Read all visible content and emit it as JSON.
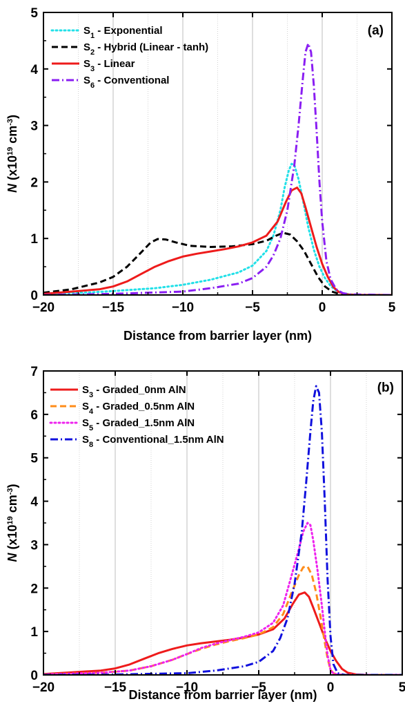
{
  "chart_data": [
    {
      "type": "line",
      "panel_label": "(a)",
      "xlabel": "Distance from barrier layer (nm)",
      "ylabel": {
        "main": "N",
        "unit_prefix": " (x10",
        "exp": "19",
        "unit_mid": " cm",
        "unit_exp": "-3",
        "unit_suffix": ")"
      },
      "xlim": [
        -20,
        5
      ],
      "ylim": [
        0,
        5
      ],
      "xticks": [
        -20,
        -15,
        -10,
        -5,
        0,
        5
      ],
      "yticks": [
        0,
        1,
        2,
        3,
        4,
        5
      ],
      "grid": "vertical",
      "legend_position": "top-left",
      "series": [
        {
          "name": "S",
          "sub": "1",
          "rest": " - Exponential",
          "color": "#22e0e8",
          "dash": "dot",
          "x": [
            -20,
            -17,
            -15,
            -12,
            -10,
            -8,
            -6,
            -5,
            -4,
            -3.5,
            -3,
            -2.7,
            -2.4,
            -2.2,
            -2,
            -1.7,
            -1.4,
            -1,
            -0.6,
            -0.2,
            0.2,
            0.6,
            1,
            1.5,
            2,
            3,
            5
          ],
          "y": [
            0.02,
            0.04,
            0.07,
            0.12,
            0.18,
            0.27,
            0.4,
            0.52,
            0.78,
            1.05,
            1.5,
            1.9,
            2.2,
            2.32,
            2.3,
            2.05,
            1.7,
            1.2,
            0.8,
            0.5,
            0.3,
            0.16,
            0.08,
            0.03,
            0.01,
            0,
            0
          ]
        },
        {
          "name": "S",
          "sub": "2",
          "rest": " - Hybrid (Linear - tanh)",
          "color": "#000000",
          "dash": "dash",
          "x": [
            -20,
            -18,
            -16,
            -15,
            -14,
            -13,
            -12.3,
            -11.8,
            -11.2,
            -10.5,
            -9.5,
            -8,
            -6.5,
            -5,
            -4,
            -3.3,
            -2.8,
            -2.3,
            -1.8,
            -1.3,
            -0.8,
            -0.3,
            0.2,
            0.7,
            1.2,
            2,
            5
          ],
          "y": [
            0.04,
            0.1,
            0.22,
            0.32,
            0.5,
            0.75,
            0.93,
            0.99,
            0.98,
            0.93,
            0.87,
            0.85,
            0.86,
            0.9,
            0.96,
            1.05,
            1.1,
            1.07,
            0.95,
            0.78,
            0.55,
            0.32,
            0.15,
            0.06,
            0.02,
            0,
            0
          ]
        },
        {
          "name": "S",
          "sub": "3",
          "rest": " - Linear",
          "color": "#ee1b1b",
          "dash": "solid",
          "x": [
            -20,
            -18,
            -16,
            -15,
            -14,
            -13,
            -12,
            -11,
            -10,
            -9,
            -8,
            -7,
            -6,
            -5,
            -4,
            -3.2,
            -2.6,
            -2.2,
            -1.8,
            -1.5,
            -1.2,
            -0.8,
            -0.4,
            0,
            0.4,
            0.8,
            1.2,
            1.8,
            2.5,
            5
          ],
          "y": [
            0.02,
            0.06,
            0.1,
            0.15,
            0.24,
            0.37,
            0.5,
            0.6,
            0.68,
            0.73,
            0.77,
            0.81,
            0.86,
            0.93,
            1.05,
            1.3,
            1.65,
            1.85,
            1.9,
            1.8,
            1.55,
            1.2,
            0.85,
            0.55,
            0.32,
            0.14,
            0.05,
            0.01,
            0,
            0
          ]
        },
        {
          "name": "S",
          "sub": "6",
          "rest": " - Conventional",
          "color": "#8a1ef2",
          "dash": "dashdot",
          "x": [
            -20,
            -15,
            -10,
            -8,
            -6,
            -5,
            -4,
            -3.5,
            -3,
            -2.5,
            -2,
            -1.7,
            -1.4,
            -1.2,
            -1,
            -0.8,
            -0.6,
            -0.4,
            -0.2,
            0,
            0.3,
            0.6,
            1,
            1.5,
            2,
            5
          ],
          "y": [
            0,
            0.02,
            0.06,
            0.12,
            0.2,
            0.3,
            0.5,
            0.7,
            1.0,
            1.5,
            2.3,
            3.0,
            3.8,
            4.3,
            4.45,
            4.3,
            3.7,
            2.9,
            2.0,
            1.3,
            0.6,
            0.28,
            0.1,
            0.03,
            0.01,
            0
          ]
        }
      ]
    },
    {
      "type": "line",
      "panel_label": "(b)",
      "xlabel": "Distance from barrier layer (nm)",
      "ylabel": {
        "main": "N",
        "unit_prefix": " (x10",
        "exp": "19",
        "unit_mid": " cm",
        "unit_exp": "-3",
        "unit_suffix": ")"
      },
      "xlim": [
        -20,
        5
      ],
      "ylim": [
        0,
        7
      ],
      "xticks": [
        -20,
        -15,
        -10,
        -5,
        0,
        5
      ],
      "yticks": [
        0,
        1,
        2,
        3,
        4,
        5,
        6,
        7
      ],
      "grid": "vertical",
      "legend_position": "top-left",
      "series": [
        {
          "name": "S",
          "sub": "3",
          "rest": " - Graded_0nm AlN",
          "color": "#ee1b1b",
          "dash": "solid",
          "x": [
            -20,
            -18,
            -16,
            -15,
            -14,
            -13,
            -12,
            -11,
            -10,
            -9,
            -8,
            -7,
            -6,
            -5,
            -4,
            -3.2,
            -2.6,
            -2.2,
            -1.8,
            -1.5,
            -1.2,
            -0.8,
            -0.4,
            0,
            0.4,
            0.8,
            1.2,
            1.8,
            2.5,
            5
          ],
          "y": [
            0.02,
            0.06,
            0.1,
            0.15,
            0.24,
            0.37,
            0.5,
            0.6,
            0.68,
            0.73,
            0.77,
            0.81,
            0.86,
            0.93,
            1.05,
            1.3,
            1.65,
            1.85,
            1.9,
            1.8,
            1.55,
            1.2,
            0.85,
            0.55,
            0.32,
            0.14,
            0.05,
            0.01,
            0,
            0
          ]
        },
        {
          "name": "S",
          "sub": "4",
          "rest": " - Graded_0.5nm AlN",
          "color": "#ff8c1a",
          "dash": "dash",
          "x": [
            -20,
            -18,
            -16,
            -14,
            -12.5,
            -11,
            -10,
            -9,
            -8,
            -7,
            -6,
            -5,
            -4,
            -3.3,
            -2.7,
            -2.2,
            -1.9,
            -1.6,
            -1.3,
            -1,
            -0.7,
            -0.4,
            -0.2,
            0,
            0.2,
            0.5,
            1,
            5
          ],
          "y": [
            0.01,
            0.03,
            0.05,
            0.1,
            0.2,
            0.35,
            0.48,
            0.6,
            0.7,
            0.78,
            0.85,
            0.93,
            1.1,
            1.4,
            1.9,
            2.3,
            2.48,
            2.5,
            2.3,
            1.9,
            1.35,
            0.75,
            0.38,
            0.12,
            0.04,
            0.01,
            0,
            0
          ]
        },
        {
          "name": "S",
          "sub": "5",
          "rest": " - Graded_1.5nm AlN",
          "color": "#ee22ee",
          "dash": "dot",
          "x": [
            -20,
            -18,
            -16,
            -14,
            -12.5,
            -11,
            -10,
            -9,
            -8,
            -7,
            -6,
            -5,
            -4,
            -3.3,
            -2.7,
            -2.2,
            -1.9,
            -1.6,
            -1.4,
            -1.2,
            -0.9,
            -0.6,
            -0.4,
            -0.2,
            0,
            0.2,
            0.5,
            1,
            5
          ],
          "y": [
            0.01,
            0.03,
            0.05,
            0.1,
            0.2,
            0.35,
            0.48,
            0.62,
            0.72,
            0.8,
            0.88,
            0.98,
            1.2,
            1.6,
            2.3,
            2.9,
            3.3,
            3.5,
            3.45,
            3.1,
            2.4,
            1.6,
            1.0,
            0.45,
            0.12,
            0.03,
            0.01,
            0,
            0
          ]
        },
        {
          "name": "S",
          "sub": "8",
          "rest": " - Conventional_1.5nm AlN",
          "color": "#1010dd",
          "dash": "dashdot",
          "x": [
            -20,
            -15,
            -10,
            -8,
            -6,
            -5,
            -4,
            -3.5,
            -3,
            -2.5,
            -2,
            -1.7,
            -1.4,
            -1.2,
            -1,
            -0.8,
            -0.6,
            -0.4,
            -0.2,
            0,
            0.2,
            0.5,
            1,
            5
          ],
          "y": [
            0,
            0.01,
            0.04,
            0.1,
            0.2,
            0.3,
            0.55,
            0.85,
            1.3,
            2.1,
            3.3,
            4.4,
            5.6,
            6.3,
            6.65,
            6.5,
            5.6,
            4.0,
            2.2,
            0.9,
            0.25,
            0.04,
            0,
            0
          ]
        }
      ]
    }
  ]
}
